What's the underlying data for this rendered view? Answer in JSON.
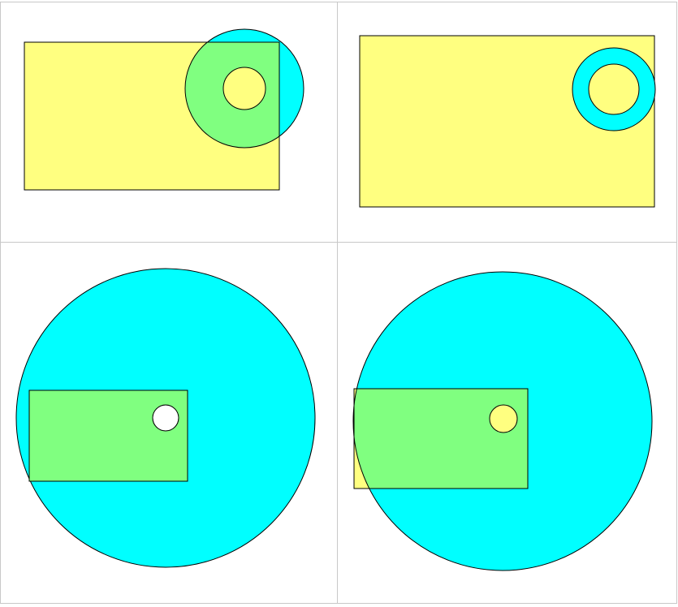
{
  "colors": {
    "rectangle_fill": "#ffff80",
    "circle_fill": "#00ffff",
    "overlap_fill": "#80ff80",
    "hole_fill": "#ffffff",
    "outline": "#000000",
    "grid": "#c8c8c8",
    "background": "#ffffff"
  },
  "panels": [
    {
      "id": "top-left",
      "rectangle": "rectangle",
      "ring": "ring-with-hole",
      "overlap": "partial"
    },
    {
      "id": "top-right",
      "rectangle": "rectangle",
      "ring": "ring-with-hole",
      "overlap": "ring-inside-rectangle"
    },
    {
      "id": "bottom-left",
      "rectangle": "rectangle",
      "ring": "large-circle-with-hole",
      "overlap": "rectangle-inside-circle"
    },
    {
      "id": "bottom-right",
      "rectangle": "rectangle",
      "ring": "large-circle-with-hole",
      "overlap": "partial"
    }
  ]
}
